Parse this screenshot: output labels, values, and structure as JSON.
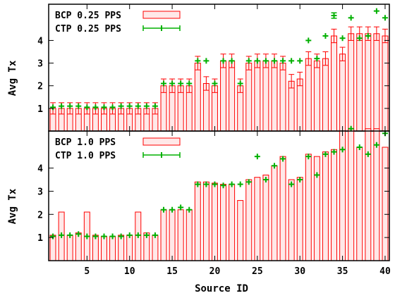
{
  "chart_data": [
    {
      "type": "bar",
      "panel": "top",
      "xlabel": "",
      "ylabel": "Avg Tx",
      "yticks": [
        1,
        2,
        3,
        4
      ],
      "ylim": [
        0,
        5.6
      ],
      "xlim": [
        0.5,
        40.5
      ],
      "x": [
        1,
        2,
        3,
        4,
        5,
        6,
        7,
        8,
        9,
        10,
        11,
        12,
        13,
        14,
        15,
        16,
        17,
        18,
        19,
        20,
        21,
        22,
        23,
        24,
        25,
        26,
        27,
        28,
        29,
        30,
        31,
        32,
        33,
        34,
        35,
        36,
        37,
        38,
        39,
        40
      ],
      "series": [
        {
          "name": "BCP 0.25 PPS",
          "kind": "bar",
          "color": "#ff0000",
          "values": [
            1.0,
            1.0,
            1.0,
            1.0,
            1.0,
            1.0,
            1.0,
            1.0,
            1.0,
            1.0,
            1.0,
            1.0,
            1.0,
            2.0,
            2.0,
            2.0,
            2.0,
            3.0,
            2.1,
            2.0,
            3.1,
            3.1,
            2.0,
            3.0,
            3.1,
            3.1,
            3.1,
            3.0,
            2.2,
            2.3,
            3.2,
            3.1,
            3.2,
            4.2,
            3.4,
            4.3,
            4.3,
            4.3,
            4.3,
            4.2
          ],
          "errors": [
            0.25,
            0.25,
            0.25,
            0.25,
            0.25,
            0.25,
            0.25,
            0.25,
            0.25,
            0.25,
            0.25,
            0.25,
            0.25,
            0.3,
            0.3,
            0.3,
            0.3,
            0.3,
            0.3,
            0.3,
            0.3,
            0.3,
            0.3,
            0.3,
            0.3,
            0.3,
            0.3,
            0.3,
            0.3,
            0.3,
            0.3,
            0.3,
            0.3,
            0.3,
            0.3,
            0.3,
            0.3,
            0.3,
            0.3,
            0.3
          ]
        },
        {
          "name": "CTP 0.25 PPS",
          "kind": "points",
          "color": "#00b000",
          "values": [
            1.05,
            1.1,
            1.1,
            1.1,
            1.05,
            1.05,
            1.05,
            1.05,
            1.1,
            1.1,
            1.1,
            1.1,
            1.1,
            2.1,
            2.1,
            2.1,
            2.1,
            3.1,
            3.1,
            2.1,
            3.1,
            3.1,
            2.1,
            3.1,
            3.1,
            3.1,
            3.1,
            3.1,
            3.1,
            3.1,
            4.0,
            3.2,
            4.2,
            5.1,
            4.1,
            5.0,
            4.1,
            4.2,
            5.3,
            5.0
          ],
          "errors": [
            0.05,
            0.05,
            0.05,
            0.05,
            0.05,
            0.05,
            0.05,
            0.05,
            0.05,
            0.05,
            0.05,
            0.05,
            0.05,
            0.05,
            0.05,
            0.05,
            0.05,
            0.05,
            0.05,
            0.05,
            0.05,
            0.05,
            0.05,
            0.05,
            0.05,
            0.05,
            0.05,
            0.05,
            0.05,
            0.05,
            0.05,
            0.05,
            0.05,
            0.12,
            0.05,
            0.05,
            0.05,
            0.05,
            0.05,
            0.05
          ]
        }
      ]
    },
    {
      "type": "bar",
      "panel": "bottom",
      "xlabel": "Source ID",
      "ylabel": "Avg Tx",
      "yticks": [
        1,
        2,
        3,
        4
      ],
      "xticks": [
        5,
        10,
        15,
        20,
        25,
        30,
        35,
        40
      ],
      "ylim": [
        0,
        5.6
      ],
      "xlim": [
        0.5,
        40.5
      ],
      "x": [
        1,
        2,
        3,
        4,
        5,
        6,
        7,
        8,
        9,
        10,
        11,
        12,
        13,
        14,
        15,
        16,
        17,
        18,
        19,
        20,
        21,
        22,
        23,
        24,
        25,
        26,
        27,
        28,
        29,
        30,
        31,
        32,
        33,
        34,
        35,
        36,
        37,
        38,
        39,
        40
      ],
      "series": [
        {
          "name": "BCP 1.0 PPS",
          "kind": "bar",
          "color": "#ff0000",
          "values": [
            1.1,
            2.1,
            1.1,
            1.2,
            2.1,
            1.1,
            1.05,
            1.05,
            1.1,
            1.1,
            2.1,
            1.2,
            1.1,
            2.2,
            2.2,
            2.2,
            2.2,
            3.4,
            3.4,
            3.35,
            3.3,
            3.3,
            2.6,
            3.5,
            3.6,
            3.7,
            4.1,
            4.5,
            3.5,
            3.6,
            4.6,
            4.5,
            4.7,
            4.8,
            5.6,
            5.7,
            4.9,
            5.7,
            5.7,
            4.9
          ],
          "errors": [
            0,
            0,
            0,
            0,
            0,
            0,
            0,
            0,
            0,
            0,
            0,
            0,
            0,
            0,
            0,
            0,
            0,
            0,
            0,
            0,
            0,
            0,
            0,
            0,
            0,
            0,
            0,
            0,
            0,
            0,
            0,
            0,
            0,
            0,
            0,
            0,
            0,
            0,
            0,
            0
          ]
        },
        {
          "name": "CTP 1.0 PPS",
          "kind": "points",
          "color": "#00b000",
          "values": [
            1.05,
            1.1,
            1.1,
            1.15,
            1.05,
            1.05,
            1.05,
            1.05,
            1.05,
            1.1,
            1.1,
            1.1,
            1.1,
            2.2,
            2.2,
            2.3,
            2.2,
            3.3,
            3.3,
            3.3,
            3.25,
            3.3,
            3.3,
            3.4,
            4.5,
            3.5,
            4.1,
            4.4,
            3.3,
            3.5,
            4.5,
            3.7,
            4.6,
            4.7,
            4.8,
            5.7,
            4.9,
            4.6,
            5.0,
            5.5
          ],
          "errors": [
            0.05,
            0.05,
            0.05,
            0.05,
            0.05,
            0.05,
            0.05,
            0.05,
            0.05,
            0.05,
            0.05,
            0.05,
            0.05,
            0.05,
            0.05,
            0.05,
            0.05,
            0.05,
            0.05,
            0.05,
            0.05,
            0.05,
            0.05,
            0.05,
            0.05,
            0.05,
            0.05,
            0.05,
            0.05,
            0.05,
            0.05,
            0.05,
            0.05,
            0.05,
            0.05,
            0.05,
            0.05,
            0.05,
            0.05,
            0.05
          ]
        }
      ]
    }
  ]
}
